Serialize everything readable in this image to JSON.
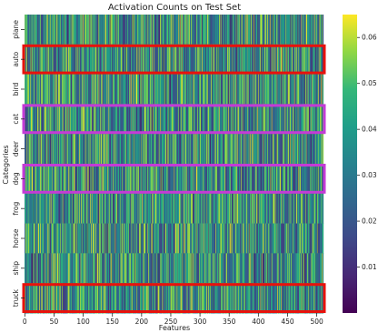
{
  "chart_data": {
    "type": "heatmap",
    "title": "Activation Counts on Test Set",
    "xlabel": "Features",
    "ylabel": "Categories",
    "categories": [
      "plane",
      "auto",
      "bird",
      "cat",
      "deer",
      "dog",
      "frog",
      "horse",
      "ship",
      "truck"
    ],
    "x_range": [
      0,
      511
    ],
    "x_ticks": [
      0,
      50,
      100,
      150,
      200,
      250,
      300,
      350,
      400,
      450,
      500
    ],
    "value_range": [
      0.0,
      0.065
    ],
    "colorbar_ticks": [
      0.01,
      0.02,
      0.03,
      0.04,
      0.05,
      0.06
    ],
    "colormap": "viridis",
    "highlights": [
      {
        "category": "auto",
        "color": "#e8120c"
      },
      {
        "category": "cat",
        "color": "#c43bd6"
      },
      {
        "category": "dog",
        "color": "#c43bd6"
      },
      {
        "category": "truck",
        "color": "#e8120c"
      }
    ]
  }
}
